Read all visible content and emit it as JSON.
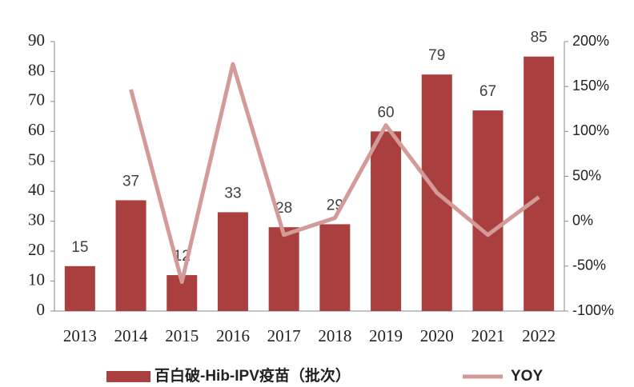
{
  "chart_data": {
    "type": "bar",
    "categories": [
      "2013",
      "2014",
      "2015",
      "2016",
      "2017",
      "2018",
      "2019",
      "2020",
      "2021",
      "2022"
    ],
    "series": [
      {
        "name": "百白破-Hib-IPV疫苗（批次）",
        "color": "#a9403f",
        "values": [
          15,
          37,
          12,
          33,
          28,
          29,
          60,
          79,
          67,
          85
        ]
      },
      {
        "name": "YOY",
        "type": "line",
        "axis": "y2",
        "color": "#d49a98",
        "values": [
          null,
          146.7,
          -67.6,
          175,
          -15.2,
          3.6,
          106.9,
          31.7,
          -15.2,
          26.9
        ]
      }
    ],
    "ylim": [
      0,
      90
    ],
    "yticks": [
      0,
      10,
      20,
      30,
      40,
      50,
      60,
      70,
      80,
      90
    ],
    "y2lim": [
      -100,
      200
    ],
    "y2ticks": [
      {
        "value": -100,
        "label": "-100%"
      },
      {
        "value": -50,
        "label": "-50%"
      },
      {
        "value": 0,
        "label": "0%"
      },
      {
        "value": 50,
        "label": "50%"
      },
      {
        "value": 100,
        "label": "100%"
      },
      {
        "value": 150,
        "label": "150%"
      },
      {
        "value": 200,
        "label": "200%"
      }
    ],
    "legend": "bottom",
    "grid": false
  }
}
